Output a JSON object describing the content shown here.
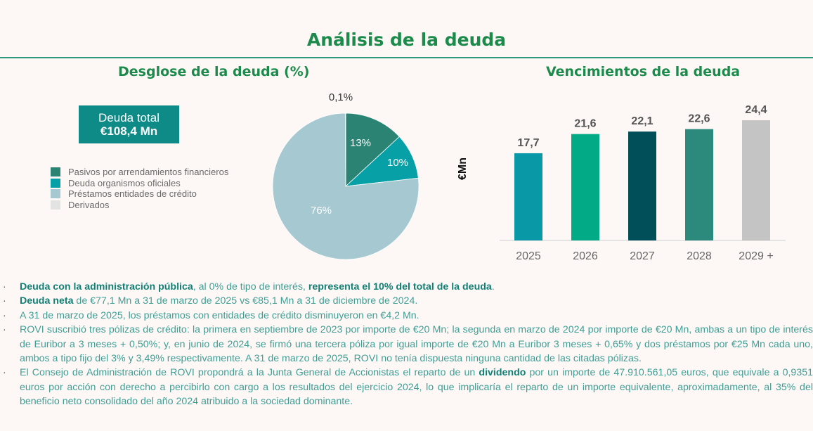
{
  "page": {
    "title": "Análisis de la deuda",
    "left_subtitle": "Desglose de la deuda (%)",
    "right_subtitle": "Vencimientos de la deuda"
  },
  "total_box": {
    "line1": "Deuda total",
    "line2": "€108,4 Mn"
  },
  "legend": [
    {
      "label": "Pasivos por arrendamientos financieros",
      "color": "#2b8373"
    },
    {
      "label": "Deuda organismos oficiales",
      "color": "#08a0a7"
    },
    {
      "label": "Préstamos entidades de crédito",
      "color": "#a6c8d0"
    },
    {
      "label": "Derivados",
      "color": "#e3e3e3"
    }
  ],
  "chart_data": [
    {
      "type": "pie",
      "title": "Desglose de la deuda (%)",
      "slices": [
        {
          "label": "Pasivos por arrendamientos financieros",
          "value": 13,
          "display": "13%",
          "color": "#2b8373"
        },
        {
          "label": "Deuda organismos oficiales",
          "value": 10,
          "display": "10%",
          "color": "#08a0a7"
        },
        {
          "label": "Préstamos entidades de crédito",
          "value": 76,
          "display": "76%",
          "color": "#a6c8d0"
        },
        {
          "label": "Derivados",
          "value": 0.1,
          "display": "0,1%",
          "color": "#e3e3e3"
        }
      ]
    },
    {
      "type": "bar",
      "title": "Vencimientos de la deuda",
      "ylabel": "€Mn",
      "categories": [
        "2025",
        "2026",
        "2027",
        "2028",
        "2029 +"
      ],
      "values": [
        17.7,
        21.6,
        22.1,
        22.6,
        24.4
      ],
      "value_labels": [
        "17,7",
        "21,6",
        "22,1",
        "22,6",
        "24,4"
      ],
      "colors": [
        "#0898a6",
        "#02ab86",
        "#014f58",
        "#2b8a7c",
        "#c4c4c4"
      ],
      "ylim": [
        0,
        24.4
      ]
    }
  ],
  "bullets": [
    {
      "parts": [
        {
          "text": "Deuda con la administración pública",
          "bold": true
        },
        {
          "text": ", al 0% de tipo de interés, ",
          "bold": false
        },
        {
          "text": "representa el 10% del total de la deuda",
          "bold": true
        },
        {
          "text": ".",
          "bold": false
        }
      ]
    },
    {
      "parts": [
        {
          "text": "Deuda neta",
          "bold": true
        },
        {
          "text": " de €77,1 Mn a 31 de marzo de 2025 vs €85,1 Mn a 31 de diciembre de 2024.",
          "bold": false
        }
      ]
    },
    {
      "parts": [
        {
          "text": "A 31 de marzo de 2025, los préstamos con entidades de crédito disminuyeron en €4,2 Mn.",
          "bold": false
        }
      ]
    },
    {
      "parts": [
        {
          "text": "ROVI suscribió tres pólizas de crédito: la primera en septiembre de 2023 por importe de €20 Mn; la segunda en marzo de 2024 por importe de €20 Mn, ambas a un tipo de interés de Euribor a 3 meses + 0,50%; y, en junio de 2024, se firmó una tercera póliza por igual importe de €20 Mn a Euribor 3 meses + 0,65% y dos préstamos por €25 Mn cada uno, ambos a tipo fijo del 3% y 3,49% respectivamente. A 31 de marzo de 2025, ROVI no tenía dispuesta ninguna cantidad de las citadas pólizas.",
          "bold": false
        }
      ]
    },
    {
      "parts": [
        {
          "text": "El Consejo de Administración de ROVI propondrá a la Junta General de Accionistas el reparto de un ",
          "bold": false
        },
        {
          "text": "dividendo",
          "bold": true
        },
        {
          "text": " por un importe de 47.910.561,05 euros, que equivale a 0,9351 euros por acción con derecho a percibirlo con cargo a los resultados del ejercicio 2024, lo que implicaría el reparto de un importe equivalente, aproximadamente, al 35% del beneficio neto consolidado del año 2024 atribuido a la sociedad dominante.",
          "bold": false
        }
      ]
    }
  ]
}
